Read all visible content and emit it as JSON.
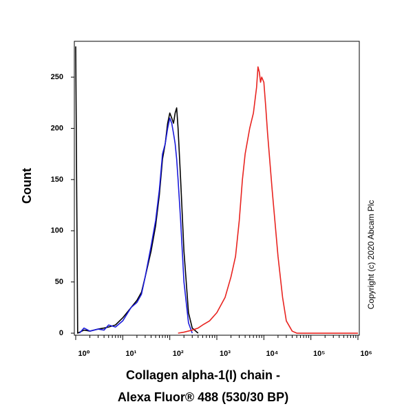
{
  "chart_data": {
    "type": "line",
    "ylabel": "Count",
    "xlabel": [
      "Collagen alpha-1(I) chain -",
      "Alexa Fluor® 488 (530/30 BP)"
    ],
    "copyright": "Copyright (c) 2020 Abcam Plc",
    "xscale": "log",
    "xlim": [
      1,
      1000000
    ],
    "ylim": [
      -2,
      285
    ],
    "xticks": [
      {
        "value": 1,
        "label": "10⁰"
      },
      {
        "value": 10,
        "label": "10¹"
      },
      {
        "value": 100,
        "label": "10²"
      },
      {
        "value": 1000,
        "label": "10³"
      },
      {
        "value": 10000,
        "label": "10⁴"
      },
      {
        "value": 100000,
        "label": "10⁵"
      },
      {
        "value": 1000000,
        "label": "10⁶"
      }
    ],
    "yticks": [
      0,
      50,
      100,
      150,
      200,
      250
    ],
    "grid": false,
    "series": [
      {
        "color": "#000000",
        "x": [
          1,
          1.1,
          1.5,
          2,
          3,
          4,
          5,
          7,
          10,
          15,
          20,
          25,
          30,
          40,
          50,
          60,
          70,
          80,
          90,
          100,
          110,
          120,
          130,
          140,
          150,
          170,
          200,
          250,
          300,
          400
        ],
        "values": [
          280,
          0,
          3,
          2,
          4,
          5,
          6,
          8,
          15,
          25,
          32,
          40,
          55,
          80,
          105,
          135,
          170,
          185,
          205,
          215,
          210,
          205,
          215,
          220,
          200,
          150,
          80,
          20,
          5,
          0
        ]
      },
      {
        "color": "#1a1adb",
        "x": [
          1.2,
          1.5,
          2,
          3,
          4,
          5,
          7,
          10,
          15,
          20,
          25,
          30,
          40,
          50,
          60,
          70,
          80,
          90,
          100,
          110,
          120,
          130,
          140,
          150,
          170,
          200,
          250,
          300
        ],
        "values": [
          0,
          5,
          2,
          4,
          3,
          8,
          6,
          12,
          25,
          30,
          38,
          55,
          85,
          110,
          140,
          175,
          185,
          200,
          210,
          205,
          195,
          185,
          170,
          150,
          110,
          50,
          10,
          0
        ]
      },
      {
        "color": "#e8231f",
        "x": [
          150,
          200,
          300,
          400,
          500,
          700,
          1000,
          1500,
          2000,
          2500,
          3000,
          3500,
          4000,
          5000,
          6000,
          7000,
          7500,
          8000,
          8500,
          9000,
          10000,
          11000,
          12000,
          15000,
          20000,
          25000,
          30000,
          40000,
          50000,
          60000,
          100000,
          1000000
        ],
        "values": [
          0,
          1,
          3,
          5,
          8,
          12,
          20,
          35,
          55,
          75,
          110,
          150,
          175,
          200,
          215,
          240,
          260,
          255,
          245,
          250,
          245,
          220,
          195,
          140,
          75,
          35,
          12,
          2,
          0,
          0,
          0,
          0
        ]
      }
    ]
  }
}
